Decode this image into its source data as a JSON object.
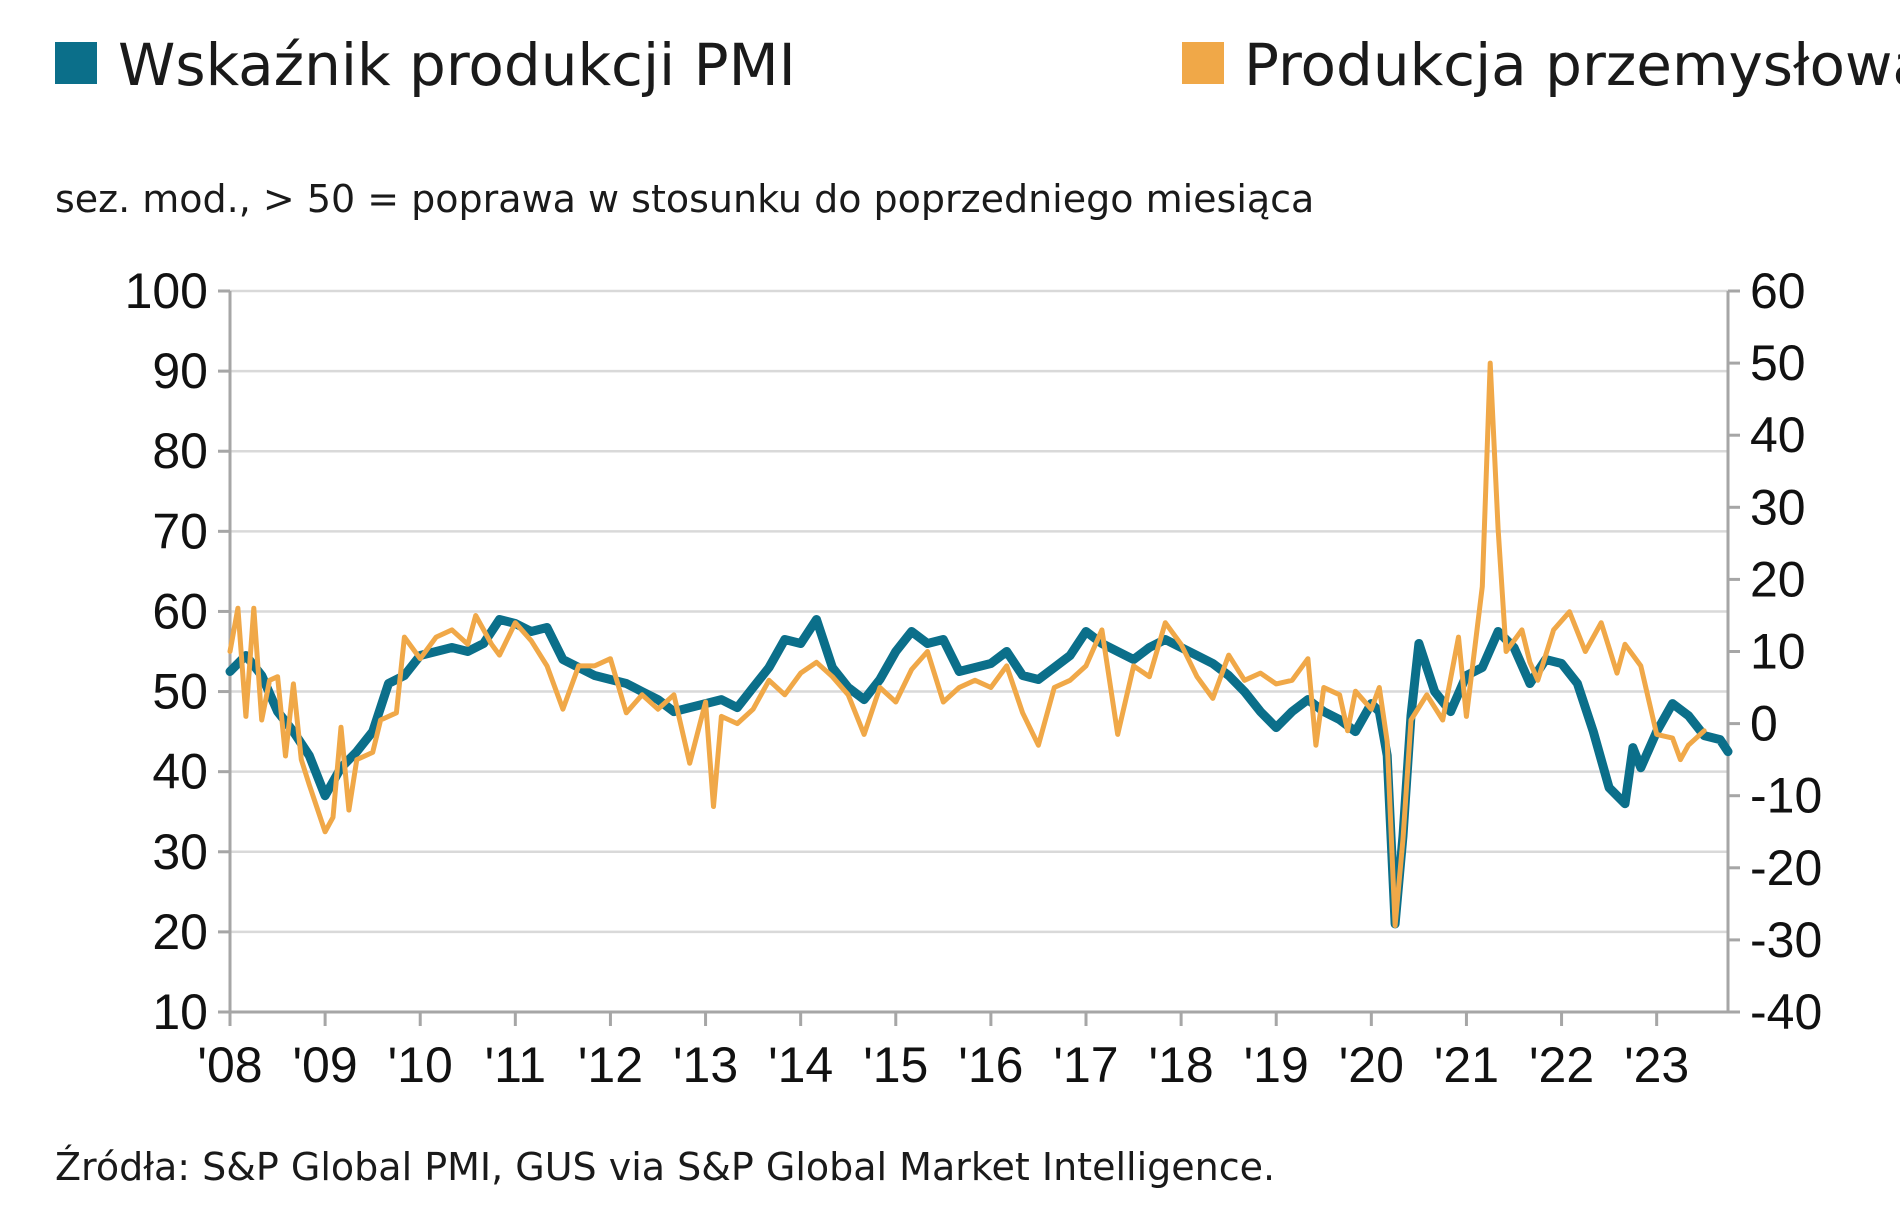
{
  "chart_data": {
    "type": "line",
    "subtitle": "sez. mod., > 50 = poprawa w stosunku do poprzedniego miesiąca",
    "source": "Źródła:  S&P Global PMI, GUS via S&P Global Market Intelligence.",
    "x_tick_labels": [
      "'08",
      "'09",
      "'10",
      "'11",
      "'12",
      "'13",
      "'14",
      "'15",
      "'16",
      "'17",
      "'18",
      "'19",
      "'20",
      "'21",
      "'22",
      "'23"
    ],
    "x_range": [
      "2008-01",
      "2023-10"
    ],
    "left_axis": {
      "range": [
        10,
        100
      ],
      "ticks": [
        10,
        20,
        30,
        40,
        50,
        60,
        70,
        80,
        90,
        100
      ]
    },
    "right_axis": {
      "range": [
        -40,
        60
      ],
      "ticks": [
        -40,
        -30,
        -20,
        -10,
        0,
        10,
        20,
        30,
        40,
        50,
        60
      ]
    },
    "grid": true,
    "legend_position": "top",
    "series": [
      {
        "name": "Wskaźnik produkcji PMI",
        "axis": "left",
        "color": "#0b6f8a",
        "points": [
          [
            "2008-01",
            52.5
          ],
          [
            "2008-03",
            54.5
          ],
          [
            "2008-05",
            52.0
          ],
          [
            "2008-07",
            47.5
          ],
          [
            "2008-09",
            45.0
          ],
          [
            "2008-11",
            42.0
          ],
          [
            "2009-01",
            37.0
          ],
          [
            "2009-03",
            40.5
          ],
          [
            "2009-05",
            42.5
          ],
          [
            "2009-07",
            45.0
          ],
          [
            "2009-09",
            51.0
          ],
          [
            "2009-11",
            52.0
          ],
          [
            "2010-01",
            54.5
          ],
          [
            "2010-03",
            55.0
          ],
          [
            "2010-05",
            55.5
          ],
          [
            "2010-07",
            55.0
          ],
          [
            "2010-09",
            56.0
          ],
          [
            "2010-11",
            59.0
          ],
          [
            "2011-01",
            58.5
          ],
          [
            "2011-03",
            57.5
          ],
          [
            "2011-05",
            58.0
          ],
          [
            "2011-07",
            54.0
          ],
          [
            "2011-09",
            53.0
          ],
          [
            "2011-11",
            52.0
          ],
          [
            "2012-01",
            51.5
          ],
          [
            "2012-03",
            51.0
          ],
          [
            "2012-05",
            50.0
          ],
          [
            "2012-07",
            49.0
          ],
          [
            "2012-09",
            47.5
          ],
          [
            "2012-11",
            48.0
          ],
          [
            "2013-01",
            48.5
          ],
          [
            "2013-03",
            49.0
          ],
          [
            "2013-05",
            48.0
          ],
          [
            "2013-07",
            50.5
          ],
          [
            "2013-09",
            53.0
          ],
          [
            "2013-11",
            56.5
          ],
          [
            "2014-01",
            56.0
          ],
          [
            "2014-03",
            59.0
          ],
          [
            "2014-05",
            53.0
          ],
          [
            "2014-07",
            50.5
          ],
          [
            "2014-09",
            49.0
          ],
          [
            "2014-11",
            51.5
          ],
          [
            "2015-01",
            55.0
          ],
          [
            "2015-03",
            57.5
          ],
          [
            "2015-05",
            56.0
          ],
          [
            "2015-07",
            56.5
          ],
          [
            "2015-09",
            52.5
          ],
          [
            "2015-11",
            53.0
          ],
          [
            "2016-01",
            53.5
          ],
          [
            "2016-03",
            55.0
          ],
          [
            "2016-05",
            52.0
          ],
          [
            "2016-07",
            51.5
          ],
          [
            "2016-09",
            53.0
          ],
          [
            "2016-11",
            54.5
          ],
          [
            "2017-01",
            57.5
          ],
          [
            "2017-03",
            56.0
          ],
          [
            "2017-05",
            55.0
          ],
          [
            "2017-07",
            54.0
          ],
          [
            "2017-09",
            55.5
          ],
          [
            "2017-11",
            56.5
          ],
          [
            "2018-01",
            55.5
          ],
          [
            "2018-03",
            54.5
          ],
          [
            "2018-05",
            53.5
          ],
          [
            "2018-07",
            52.0
          ],
          [
            "2018-09",
            50.0
          ],
          [
            "2018-11",
            47.5
          ],
          [
            "2019-01",
            45.5
          ],
          [
            "2019-03",
            47.5
          ],
          [
            "2019-05",
            49.0
          ],
          [
            "2019-07",
            47.5
          ],
          [
            "2019-09",
            46.5
          ],
          [
            "2019-11",
            45.0
          ],
          [
            "2020-01",
            48.5
          ],
          [
            "2020-02",
            47.5
          ],
          [
            "2020-03",
            42.0
          ],
          [
            "2020-04",
            21.0
          ],
          [
            "2020-05",
            32.0
          ],
          [
            "2020-06",
            47.0
          ],
          [
            "2020-07",
            56.0
          ],
          [
            "2020-09",
            50.0
          ],
          [
            "2020-11",
            47.5
          ],
          [
            "2021-01",
            52.0
          ],
          [
            "2021-03",
            53.0
          ],
          [
            "2021-05",
            57.5
          ],
          [
            "2021-07",
            55.5
          ],
          [
            "2021-09",
            51.0
          ],
          [
            "2021-11",
            54.0
          ],
          [
            "2022-01",
            53.5
          ],
          [
            "2022-03",
            51.0
          ],
          [
            "2022-05",
            45.0
          ],
          [
            "2022-07",
            38.0
          ],
          [
            "2022-09",
            36.0
          ],
          [
            "2022-10",
            43.0
          ],
          [
            "2022-11",
            40.5
          ],
          [
            "2023-01",
            45.0
          ],
          [
            "2023-03",
            48.5
          ],
          [
            "2023-05",
            47.0
          ],
          [
            "2023-07",
            44.5
          ],
          [
            "2023-09",
            44.0
          ],
          [
            "2023-10",
            42.5
          ]
        ]
      },
      {
        "name": "Produkcja przemysłowa",
        "axis": "right",
        "color": "#f0a848",
        "points": [
          [
            "2008-01",
            10.0
          ],
          [
            "2008-02",
            16.0
          ],
          [
            "2008-03",
            1.0
          ],
          [
            "2008-04",
            16.0
          ],
          [
            "2008-05",
            0.5
          ],
          [
            "2008-06",
            6.0
          ],
          [
            "2008-07",
            6.5
          ],
          [
            "2008-08",
            -4.5
          ],
          [
            "2008-09",
            5.5
          ],
          [
            "2008-10",
            -5.0
          ],
          [
            "2008-11",
            -8.5
          ],
          [
            "2009-01",
            -15.0
          ],
          [
            "2009-02",
            -13.0
          ],
          [
            "2009-03",
            -0.5
          ],
          [
            "2009-04",
            -12.0
          ],
          [
            "2009-05",
            -5.0
          ],
          [
            "2009-07",
            -4.0
          ],
          [
            "2009-08",
            0.5
          ],
          [
            "2009-10",
            1.5
          ],
          [
            "2009-11",
            12.0
          ],
          [
            "2010-01",
            9.0
          ],
          [
            "2010-03",
            12.0
          ],
          [
            "2010-05",
            13.0
          ],
          [
            "2010-07",
            11.0
          ],
          [
            "2010-08",
            15.0
          ],
          [
            "2010-10",
            11.0
          ],
          [
            "2010-11",
            9.5
          ],
          [
            "2011-01",
            14.0
          ],
          [
            "2011-03",
            11.5
          ],
          [
            "2011-05",
            8.0
          ],
          [
            "2011-07",
            2.0
          ],
          [
            "2011-09",
            8.0
          ],
          [
            "2011-11",
            8.0
          ],
          [
            "2012-01",
            9.0
          ],
          [
            "2012-03",
            1.5
          ],
          [
            "2012-05",
            4.0
          ],
          [
            "2012-07",
            2.0
          ],
          [
            "2012-09",
            4.0
          ],
          [
            "2012-11",
            -5.5
          ],
          [
            "2013-01",
            3.0
          ],
          [
            "2013-02",
            -11.5
          ],
          [
            "2013-03",
            1.0
          ],
          [
            "2013-05",
            0.0
          ],
          [
            "2013-07",
            2.0
          ],
          [
            "2013-09",
            6.0
          ],
          [
            "2013-11",
            4.0
          ],
          [
            "2014-01",
            7.0
          ],
          [
            "2014-03",
            8.5
          ],
          [
            "2014-05",
            6.5
          ],
          [
            "2014-07",
            4.0
          ],
          [
            "2014-09",
            -1.5
          ],
          [
            "2014-11",
            5.0
          ],
          [
            "2015-01",
            3.0
          ],
          [
            "2015-03",
            7.5
          ],
          [
            "2015-05",
            10.0
          ],
          [
            "2015-07",
            3.0
          ],
          [
            "2015-09",
            5.0
          ],
          [
            "2015-11",
            6.0
          ],
          [
            "2016-01",
            5.0
          ],
          [
            "2016-03",
            8.0
          ],
          [
            "2016-05",
            1.5
          ],
          [
            "2016-07",
            -3.0
          ],
          [
            "2016-09",
            5.0
          ],
          [
            "2016-11",
            6.0
          ],
          [
            "2017-01",
            8.0
          ],
          [
            "2017-03",
            13.0
          ],
          [
            "2017-05",
            -1.5
          ],
          [
            "2017-07",
            8.0
          ],
          [
            "2017-09",
            6.5
          ],
          [
            "2017-11",
            14.0
          ],
          [
            "2018-01",
            11.0
          ],
          [
            "2018-03",
            6.5
          ],
          [
            "2018-05",
            3.5
          ],
          [
            "2018-07",
            9.5
          ],
          [
            "2018-09",
            6.0
          ],
          [
            "2018-11",
            7.0
          ],
          [
            "2019-01",
            5.5
          ],
          [
            "2019-03",
            6.0
          ],
          [
            "2019-05",
            9.0
          ],
          [
            "2019-06",
            -3.0
          ],
          [
            "2019-07",
            5.0
          ],
          [
            "2019-09",
            4.0
          ],
          [
            "2019-10",
            -1.0
          ],
          [
            "2019-11",
            4.5
          ],
          [
            "2020-01",
            2.0
          ],
          [
            "2020-02",
            5.0
          ],
          [
            "2020-03",
            -2.5
          ],
          [
            "2020-04",
            -28.0
          ],
          [
            "2020-05",
            -16.0
          ],
          [
            "2020-06",
            0.5
          ],
          [
            "2020-08",
            4.0
          ],
          [
            "2020-10",
            0.5
          ],
          [
            "2020-12",
            12.0
          ],
          [
            "2021-01",
            1.0
          ],
          [
            "2021-03",
            19.0
          ],
          [
            "2021-04",
            50.0
          ],
          [
            "2021-05",
            27.0
          ],
          [
            "2021-06",
            10.0
          ],
          [
            "2021-08",
            13.0
          ],
          [
            "2021-09",
            8.5
          ],
          [
            "2021-10",
            6.0
          ],
          [
            "2021-12",
            13.0
          ],
          [
            "2022-02",
            15.5
          ],
          [
            "2022-04",
            10.0
          ],
          [
            "2022-06",
            14.0
          ],
          [
            "2022-08",
            7.0
          ],
          [
            "2022-09",
            11.0
          ],
          [
            "2022-11",
            8.0
          ],
          [
            "2023-01",
            -1.5
          ],
          [
            "2023-03",
            -2.0
          ],
          [
            "2023-04",
            -5.0
          ],
          [
            "2023-05",
            -3.0
          ],
          [
            "2023-07",
            -1.0
          ]
        ]
      }
    ]
  }
}
